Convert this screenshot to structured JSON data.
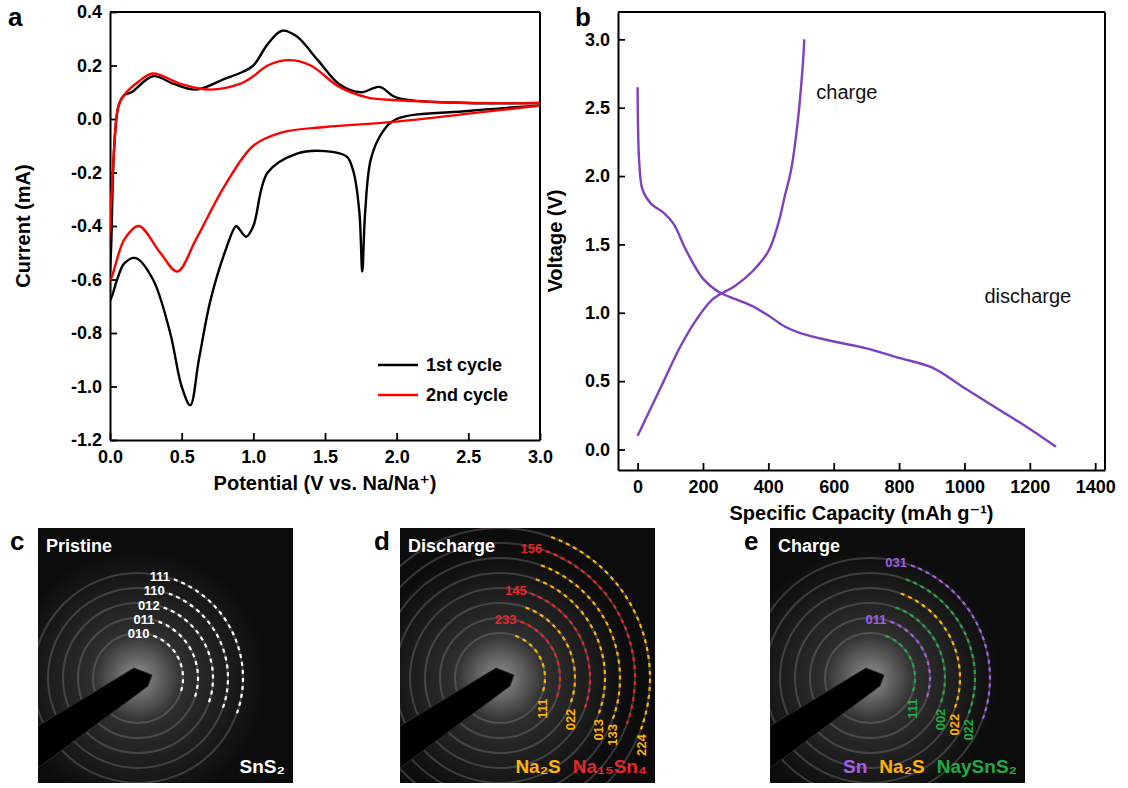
{
  "chart_data": [
    {
      "panel": "a",
      "type": "line",
      "xlabel": "Potential (V vs. Na/Na⁺)",
      "ylabel": "Current (mA)",
      "xlim": [
        0,
        3
      ],
      "xticks": [
        {
          "value": 0,
          "label": "0.0"
        },
        0.5,
        {
          "value": 1,
          "label": "1.0"
        },
        1.5,
        {
          "value": 2,
          "label": "2.0"
        },
        2.5,
        {
          "value": 3,
          "label": "3.0"
        }
      ],
      "ylim": [
        -1.2,
        0.4
      ],
      "yticks": [
        -1.2,
        {
          "value": -1,
          "label": "-1.0"
        },
        -0.8,
        -0.6,
        -0.4,
        -0.2,
        {
          "value": 0,
          "label": "0.0"
        },
        0.2,
        0.4
      ],
      "legend": "lower right",
      "series": [
        {
          "name": "1st cycle",
          "color": "#000000",
          "x": [
            3.0,
            2.5,
            2.0,
            1.9,
            1.82,
            1.78,
            1.76,
            1.74,
            1.7,
            1.65,
            1.5,
            1.3,
            1.1,
            1.0,
            0.95,
            0.9,
            0.88,
            0.8,
            0.7,
            0.62,
            0.56,
            0.5,
            0.42,
            0.3,
            0.18,
            0.1,
            0.05,
            0.0,
            0.01,
            0.03,
            0.06,
            0.1,
            0.15,
            0.3,
            0.45,
            0.6,
            0.8,
            0.9,
            1.0,
            1.1,
            1.2,
            1.3,
            1.45,
            1.6,
            1.75,
            1.88,
            2.0,
            2.5,
            3.0
          ],
          "values": [
            0.05,
            0.03,
            0.0,
            -0.05,
            -0.15,
            -0.35,
            -0.57,
            -0.35,
            -0.2,
            -0.14,
            -0.12,
            -0.13,
            -0.2,
            -0.4,
            -0.44,
            -0.41,
            -0.4,
            -0.5,
            -0.68,
            -0.9,
            -1.07,
            -1.0,
            -0.8,
            -0.6,
            -0.52,
            -0.54,
            -0.6,
            -0.68,
            -0.45,
            -0.1,
            0.05,
            0.09,
            0.1,
            0.16,
            0.13,
            0.11,
            0.15,
            0.17,
            0.2,
            0.28,
            0.33,
            0.31,
            0.22,
            0.13,
            0.1,
            0.12,
            0.08,
            0.06,
            0.06
          ]
        },
        {
          "name": "2nd cycle",
          "color": "#ff0000",
          "x": [
            3.0,
            2.5,
            2.0,
            1.5,
            1.2,
            1.0,
            0.8,
            0.6,
            0.47,
            0.35,
            0.2,
            0.1,
            0.0,
            0.02,
            0.06,
            0.1,
            0.2,
            0.3,
            0.5,
            0.7,
            0.9,
            1.0,
            1.1,
            1.25,
            1.4,
            1.6,
            1.8,
            2.0,
            2.5,
            3.0
          ],
          "values": [
            0.05,
            0.02,
            -0.01,
            -0.03,
            -0.05,
            -0.1,
            -0.25,
            -0.45,
            -0.57,
            -0.5,
            -0.4,
            -0.45,
            -0.6,
            -0.2,
            0.05,
            0.09,
            0.14,
            0.17,
            0.13,
            0.11,
            0.13,
            0.16,
            0.2,
            0.22,
            0.2,
            0.12,
            0.08,
            0.07,
            0.06,
            0.06
          ]
        }
      ]
    },
    {
      "panel": "b",
      "type": "line",
      "xlabel": "Specific Capacity (mAh g⁻¹)",
      "ylabel": "Voltage (V)",
      "xlim": [
        -60,
        1430
      ],
      "xticks": [
        0,
        200,
        400,
        600,
        800,
        1000,
        1200,
        1400
      ],
      "ylim": [
        -0.15,
        3.2
      ],
      "yticks": [
        {
          "value": 0,
          "label": "0.0"
        },
        0.5,
        {
          "value": 1,
          "label": "1.0"
        },
        1.5,
        {
          "value": 2,
          "label": "2.0"
        },
        2.5,
        {
          "value": 3,
          "label": "3.0"
        }
      ],
      "series": [
        {
          "name": "discharge",
          "color": "#7f3fbf",
          "x": [
            0,
            5,
            15,
            40,
            80,
            110,
            150,
            200,
            250,
            300,
            350,
            400,
            450,
            500,
            600,
            700,
            800,
            900,
            1000,
            1100,
            1200,
            1280
          ],
          "values": [
            2.65,
            2.1,
            1.9,
            1.8,
            1.73,
            1.65,
            1.45,
            1.25,
            1.15,
            1.1,
            1.05,
            0.98,
            0.9,
            0.85,
            0.79,
            0.74,
            0.67,
            0.6,
            0.45,
            0.3,
            0.15,
            0.02
          ]
        },
        {
          "name": "charge",
          "color": "#7f3fbf",
          "x": [
            0,
            30,
            80,
            130,
            180,
            230,
            300,
            350,
            400,
            430,
            450,
            470,
            490,
            505,
            510
          ],
          "values": [
            0.1,
            0.25,
            0.5,
            0.75,
            0.95,
            1.1,
            1.2,
            1.3,
            1.45,
            1.65,
            1.85,
            2.05,
            2.4,
            2.8,
            3.0
          ]
        }
      ]
    },
    {
      "panel": "c",
      "type": "image",
      "title": "Pristine",
      "phases": [
        {
          "name": "SnS₂",
          "color": "#ffffff"
        }
      ],
      "rings": [
        {
          "label": "010",
          "phase": "SnS₂"
        },
        {
          "label": "011",
          "phase": "SnS₂"
        },
        {
          "label": "012",
          "phase": "SnS₂"
        },
        {
          "label": "110",
          "phase": "SnS₂"
        },
        {
          "label": "111",
          "phase": "SnS₂"
        }
      ]
    },
    {
      "panel": "d",
      "type": "image",
      "title": "Discharge",
      "phases": [
        {
          "name": "Na₂S",
          "color": "#ffb300"
        },
        {
          "name": "Na₁₅Sn₄",
          "color": "#e8262a"
        }
      ],
      "rings": [
        {
          "label": "111",
          "phase": "Na₂S"
        },
        {
          "label": "233",
          "phase": "Na₁₅Sn₄"
        },
        {
          "label": "022",
          "phase": "Na₂S"
        },
        {
          "label": "145",
          "phase": "Na₁₅Sn₄"
        },
        {
          "label": "013",
          "phase": "Na₂S"
        },
        {
          "label": "133",
          "phase": "Na₂S"
        },
        {
          "label": "156",
          "phase": "Na₁₅Sn₄"
        },
        {
          "label": "224",
          "phase": "Na₂S"
        }
      ]
    },
    {
      "panel": "e",
      "type": "image",
      "title": "Charge",
      "phases": [
        {
          "name": "Sn",
          "color": "#a45ee5"
        },
        {
          "name": "Na₂S",
          "color": "#ffb300"
        },
        {
          "name": "NaySnS₂",
          "color": "#22aa44"
        }
      ],
      "rings": [
        {
          "label": "111",
          "phase": "NaySnS₂"
        },
        {
          "label": "011",
          "phase": "Sn"
        },
        {
          "label": "002",
          "phase": "NaySnS₂"
        },
        {
          "label": "022",
          "phase": "Na₂S"
        },
        {
          "label": "022",
          "phase": "NaySnS₂"
        },
        {
          "label": "031",
          "phase": "Sn"
        }
      ]
    }
  ]
}
